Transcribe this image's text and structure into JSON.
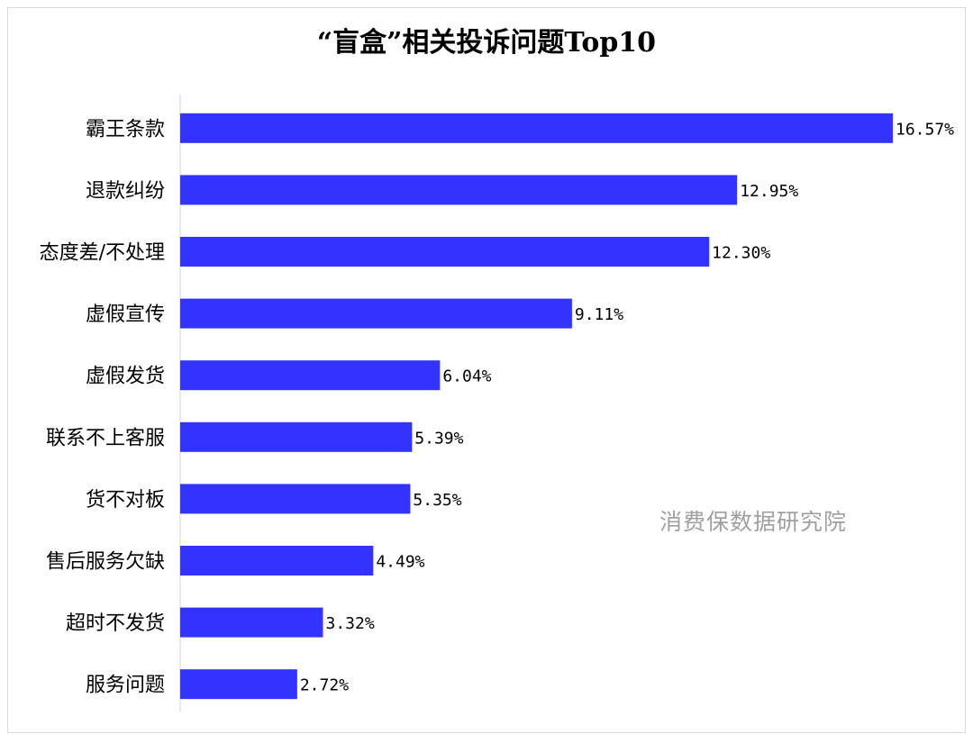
{
  "chart_data": {
    "type": "bar",
    "orientation": "horizontal",
    "title": "“盲盒”相关投诉问题Top10",
    "categories": [
      "霸王条款",
      "退款纠纷",
      "态度差/不处理",
      "虚假宣传",
      "虚假发货",
      "联系不上客服",
      "货不对板",
      "售后服务欠缺",
      "超时不发货",
      "服务问题"
    ],
    "values": [
      16.57,
      12.95,
      12.3,
      9.11,
      6.04,
      5.39,
      5.35,
      4.49,
      3.32,
      2.72
    ],
    "data_labels": [
      "16.57%",
      "12.95%",
      "12.30%",
      "9.11%",
      "6.04%",
      "5.39%",
      "5.35%",
      "4.49%",
      "3.32%",
      "2.72%"
    ],
    "xlim": [
      0,
      16.57
    ],
    "grid": false,
    "legend": "none",
    "bar_color": "#3333ff",
    "watermark": "消费保数据研究院"
  }
}
